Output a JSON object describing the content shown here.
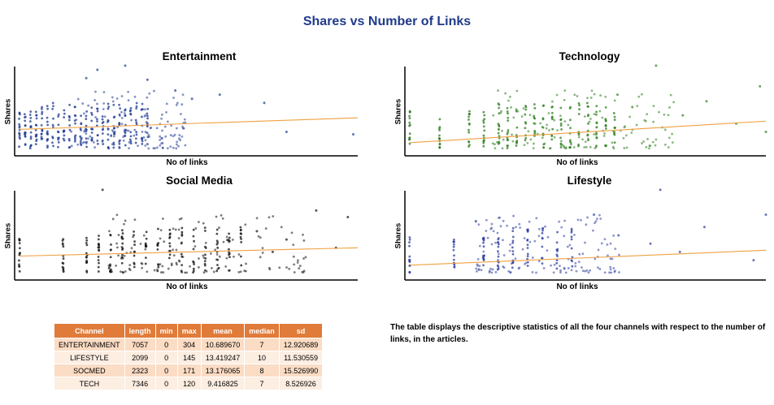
{
  "title": "Shares vs Number of Links",
  "chart_data": [
    {
      "type": "scatter",
      "title": "Entertainment",
      "xlabel": "No of links",
      "ylabel": "Shares",
      "color": "#1f3a93",
      "trend_color": "#f0a040",
      "xlim": [
        0,
        304
      ],
      "trend": {
        "x": [
          0,
          304
        ],
        "y": [
          0.28,
          0.42
        ]
      },
      "columns_x": [
        0,
        5,
        10,
        15,
        20,
        25,
        30,
        35,
        40,
        45,
        50,
        55,
        60,
        65,
        70,
        75,
        80,
        85,
        90,
        95,
        100,
        105,
        110,
        115
      ],
      "points": [
        [
          220,
          0.6
        ],
        [
          240,
          0.25
        ],
        [
          300,
          0.22
        ],
        [
          95,
          1.05
        ],
        [
          115,
          0.88
        ],
        [
          70,
          1.0
        ],
        [
          60,
          0.9
        ],
        [
          140,
          0.75
        ],
        [
          155,
          0.65
        ],
        [
          180,
          0.7
        ]
      ]
    },
    {
      "type": "scatter",
      "title": "Technology",
      "xlabel": "No of links",
      "ylabel": "Shares",
      "color": "#2e7d1e",
      "trend_color": "#f0a040",
      "xlim": [
        0,
        120
      ],
      "trend": {
        "x": [
          0,
          120
        ],
        "y": [
          0.12,
          0.38
        ]
      },
      "columns_x": [
        0,
        10,
        20,
        25,
        30,
        33,
        36,
        39,
        42,
        45,
        48,
        51,
        54,
        57,
        60,
        63,
        66,
        69
      ],
      "points": [
        [
          83,
          1.05
        ],
        [
          118,
          0.8
        ],
        [
          100,
          0.62
        ],
        [
          92,
          0.45
        ],
        [
          120,
          0.25
        ],
        [
          70,
          0.7
        ],
        [
          75,
          0.55
        ],
        [
          110,
          0.35
        ]
      ]
    },
    {
      "type": "scatter",
      "title": "Social Media",
      "xlabel": "No of links",
      "ylabel": "Shares",
      "color": "#111111",
      "trend_color": "#f0a040",
      "xlim": [
        0,
        171
      ],
      "trend": {
        "x": [
          0,
          171
        ],
        "y": [
          0.25,
          0.35
        ]
      },
      "columns_x": [
        0,
        22,
        34,
        40,
        46,
        52,
        58,
        64,
        70,
        76,
        82,
        88,
        94,
        100,
        106,
        112
      ],
      "points": [
        [
          42,
          1.05
        ],
        [
          150,
          0.8
        ],
        [
          166,
          0.72
        ],
        [
          120,
          0.55
        ],
        [
          135,
          0.45
        ],
        [
          160,
          0.35
        ],
        [
          128,
          0.3
        ]
      ]
    },
    {
      "type": "scatter",
      "title": "Lifestyle",
      "xlabel": "No of links",
      "ylabel": "Shares",
      "color": "#2e3fa0",
      "trend_color": "#f0a040",
      "xlim": [
        0,
        145
      ],
      "trend": {
        "x": [
          0,
          145
        ],
        "y": [
          0.14,
          0.32
        ]
      },
      "columns_x": [
        0,
        18,
        30,
        36,
        42,
        48,
        54,
        60,
        66
      ],
      "points": [
        [
          102,
          1.05
        ],
        [
          75,
          0.75
        ],
        [
          120,
          0.6
        ],
        [
          145,
          0.75
        ],
        [
          98,
          0.4
        ],
        [
          140,
          0.2
        ],
        [
          110,
          0.3
        ],
        [
          85,
          0.5
        ]
      ]
    }
  ],
  "table": {
    "headers": [
      "Channel",
      "length",
      "min",
      "max",
      "mean",
      "median",
      "sd"
    ],
    "rows": [
      [
        "ENTERTAINMENT",
        "7057",
        "0",
        "304",
        "10.689670",
        "7",
        "12.920689"
      ],
      [
        "LIFESTYLE",
        "2099",
        "0",
        "145",
        "13.419247",
        "10",
        "11.530559"
      ],
      [
        "SOCMED",
        "2323",
        "0",
        "171",
        "13.176065",
        "8",
        "15.526990"
      ],
      [
        "TECH",
        "7346",
        "0",
        "120",
        "9.416825",
        "7",
        "8.526926"
      ]
    ]
  },
  "description": "The table displays the descriptive statistics of all the four channels with respect to the number of links, in the articles."
}
